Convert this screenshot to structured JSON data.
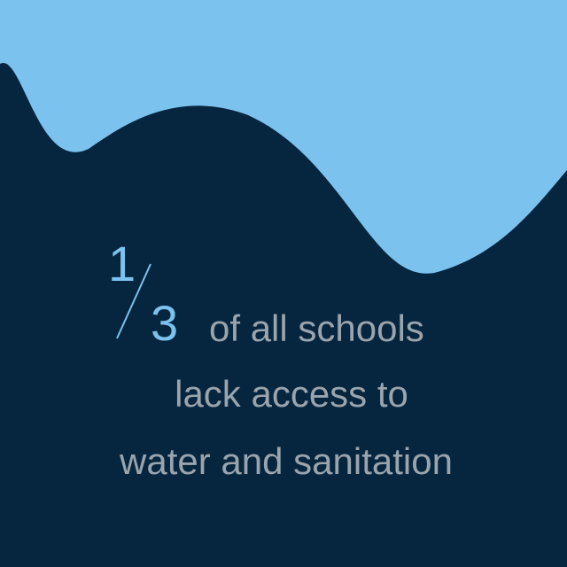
{
  "colors": {
    "background": "#06263f",
    "wave": "#7cc2ee",
    "fraction": "#7cc2ee",
    "text": "#9aa4ad"
  },
  "fraction": {
    "numerator": "1",
    "denominator": "3"
  },
  "statement": {
    "line1": "of all schools",
    "line2": "lack access to",
    "line3": "water and sanitation"
  }
}
